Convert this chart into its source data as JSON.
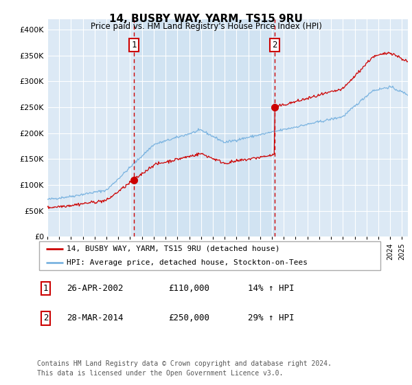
{
  "title": "14, BUSBY WAY, YARM, TS15 9RU",
  "subtitle": "Price paid vs. HM Land Registry's House Price Index (HPI)",
  "background_color": "#dce9f5",
  "hpi_color": "#7ab3e0",
  "price_color": "#cc0000",
  "vline_color": "#cc0000",
  "ylim": [
    0,
    420000
  ],
  "yticks": [
    0,
    50000,
    100000,
    150000,
    200000,
    250000,
    300000,
    350000,
    400000
  ],
  "sale1_date_x": 2002.32,
  "sale1_price": 110000,
  "sale2_date_x": 2014.24,
  "sale2_price": 250000,
  "legend_label_price": "14, BUSBY WAY, YARM, TS15 9RU (detached house)",
  "legend_label_hpi": "HPI: Average price, detached house, Stockton-on-Tees",
  "annotation1_label": "26-APR-2002",
  "annotation1_price": "£110,000",
  "annotation1_hpi": "14% ↑ HPI",
  "annotation2_label": "28-MAR-2014",
  "annotation2_price": "£250,000",
  "annotation2_hpi": "29% ↑ HPI",
  "footer": "Contains HM Land Registry data © Crown copyright and database right 2024.\nThis data is licensed under the Open Government Licence v3.0.",
  "xmin": 1995,
  "xmax": 2025.5
}
